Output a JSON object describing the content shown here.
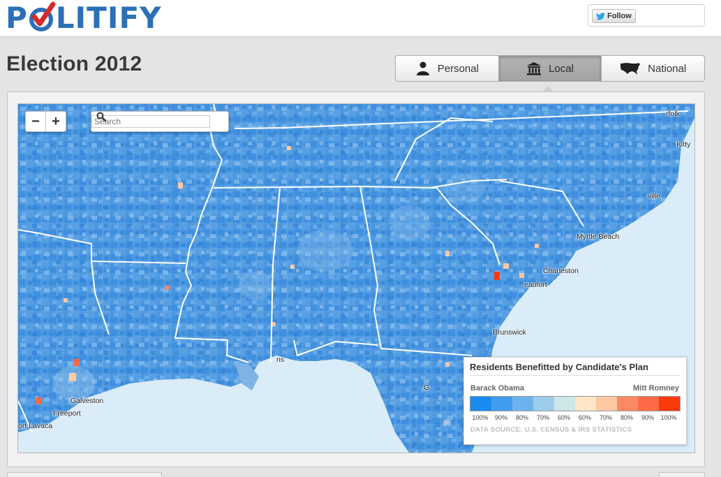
{
  "header": {
    "logo_text_left": "P",
    "logo_text_right": "LITIFY",
    "follow_label": "Follow"
  },
  "page": {
    "title": "Election 2012"
  },
  "tabs": [
    {
      "label": "Personal",
      "icon": "person-icon",
      "active": false
    },
    {
      "label": "Local",
      "icon": "building-icon",
      "active": true
    },
    {
      "label": "National",
      "icon": "usa-map-icon",
      "active": false
    }
  ],
  "map": {
    "search_placeholder": "Search",
    "zoom_out_label": "−",
    "zoom_in_label": "+",
    "cities": [
      {
        "name": "rfolk"
      },
      {
        "name": "Kitty"
      },
      {
        "name": "ville"
      },
      {
        "name": "Myrtle Beach"
      },
      {
        "name": "Charleston"
      },
      {
        "name": "eaufort"
      },
      {
        "name": "Brunswick"
      },
      {
        "name": "Galveston"
      },
      {
        "name": "Freeport"
      },
      {
        "name": "ort Lavaca"
      },
      {
        "name": "ns"
      },
      {
        "name": "G"
      },
      {
        "name": "Fl"
      }
    ]
  },
  "legend": {
    "title": "Residents Benefitted by Candidate's Plan",
    "left_candidate": "Barack Obama",
    "right_candidate": "Mitt Romney",
    "scale_colors": [
      "#1a8cf0",
      "#3f9cf0",
      "#6cb3ee",
      "#9ccdec",
      "#cde7e8",
      "#fde6c8",
      "#fdc8a4",
      "#fb8a64",
      "#fb6a44",
      "#fb3a0a"
    ],
    "scale_labels": [
      "100%",
      "90%",
      "80%",
      "70%",
      "60%",
      "60%",
      "70%",
      "80%",
      "90%",
      "100%"
    ],
    "source": "DATA SOURCE: U.S. CENSUS & IRS STATISTICS"
  },
  "colors": {
    "land": "#4a97e0",
    "water": "#d9ecf7",
    "accent_blue": "#2b6fb8",
    "accent_red": "#d42a2a"
  }
}
